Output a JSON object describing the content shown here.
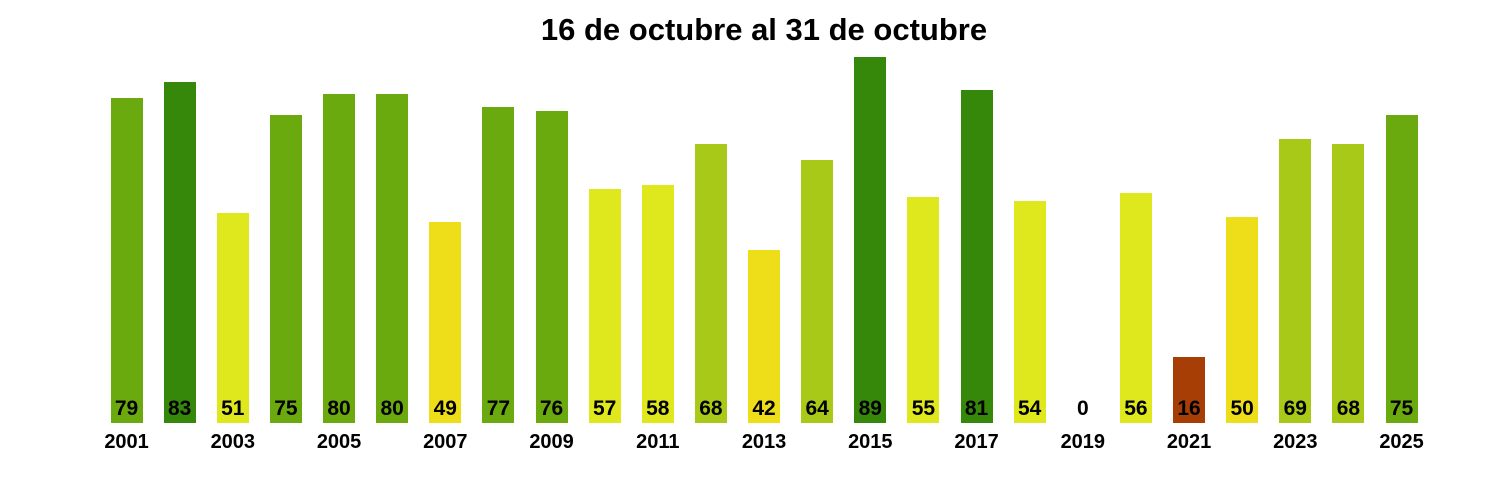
{
  "title": "16 de octubre al 31 de octubre",
  "chart_data": {
    "type": "bar",
    "title": "16 de octubre al 31 de octubre",
    "xlabel": "",
    "ylabel": "",
    "ylim": [
      0,
      89
    ],
    "grid": false,
    "legend_position": "none",
    "x": [
      2001,
      2002,
      2003,
      2004,
      2005,
      2006,
      2007,
      2008,
      2009,
      2010,
      2011,
      2012,
      2013,
      2014,
      2015,
      2016,
      2017,
      2018,
      2019,
      2020,
      2021,
      2022,
      2023,
      2024,
      2025
    ],
    "values": [
      79,
      83,
      51,
      75,
      80,
      80,
      49,
      77,
      76,
      57,
      58,
      68,
      42,
      64,
      89,
      55,
      81,
      54,
      0,
      56,
      16,
      50,
      69,
      68,
      75
    ],
    "value_labels": [
      "79",
      "83",
      "51",
      "75",
      "80",
      "80",
      "49",
      "77",
      "76",
      "57",
      "58",
      "68",
      "42",
      "64",
      "89",
      "55",
      "81",
      "54",
      "0",
      "56",
      "16",
      "50",
      "69",
      "68",
      "75"
    ],
    "bar_colors": [
      "#6BAA0E",
      "#36880A",
      "#DFE81C",
      "#6BAA0E",
      "#6BAA0E",
      "#6BAA0E",
      "#EEDE1A",
      "#6BAA0E",
      "#6BAA0E",
      "#DFE81C",
      "#DFE81C",
      "#A9C918",
      "#EEDE1A",
      "#A9C918",
      "#36880A",
      "#DFE81C",
      "#36880A",
      "#DFE81C",
      "none",
      "#DFE81C",
      "#A63E05",
      "#EEDE1A",
      "#A9C918",
      "#A9C918",
      "#6BAA0E"
    ],
    "x_tick_labels": [
      "2001",
      "",
      "2003",
      "",
      "2005",
      "",
      "2007",
      "",
      "2009",
      "",
      "2011",
      "",
      "2013",
      "",
      "2015",
      "",
      "2017",
      "",
      "2019",
      "",
      "2021",
      "",
      "2023",
      "",
      "2025"
    ],
    "colors": {
      "dark_green": "#36880A",
      "medium_green": "#6BAA0E",
      "yellow_green": "#A9C918",
      "lime_yellow": "#DFE81C",
      "gold": "#EEDE1A",
      "dark_red_brown": "#A63E05",
      "label_text": "#000000",
      "background": "#FFFFFF"
    }
  }
}
